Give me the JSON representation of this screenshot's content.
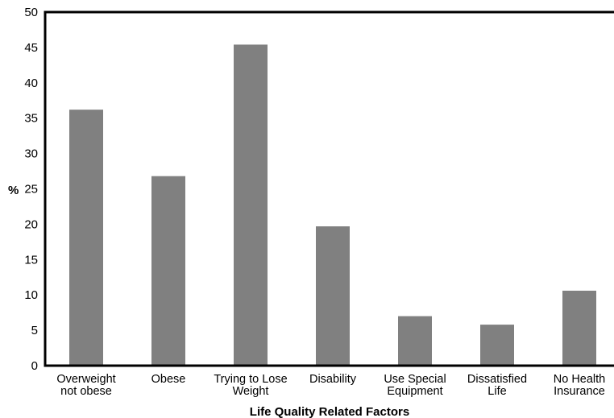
{
  "chart_data": {
    "type": "bar",
    "title": "",
    "xlabel": "Life Quality Related Factors",
    "ylabel": "%",
    "ylim": [
      0,
      50
    ],
    "yticks": [
      0,
      5,
      10,
      15,
      20,
      25,
      30,
      35,
      40,
      45,
      50
    ],
    "grid": false,
    "categories": [
      [
        "Overweight",
        "not obese"
      ],
      [
        "Obese"
      ],
      [
        "Trying to Lose",
        "Weight"
      ],
      [
        "Disability"
      ],
      [
        "Use Special",
        "Equipment"
      ],
      [
        "Dissatisfied",
        "Life"
      ],
      [
        "No Health",
        "Insurance"
      ]
    ],
    "values": [
      36.2,
      26.8,
      45.4,
      19.7,
      7.0,
      5.8,
      10.6
    ],
    "bar_color": "#808080",
    "axis_color": "#000000"
  }
}
